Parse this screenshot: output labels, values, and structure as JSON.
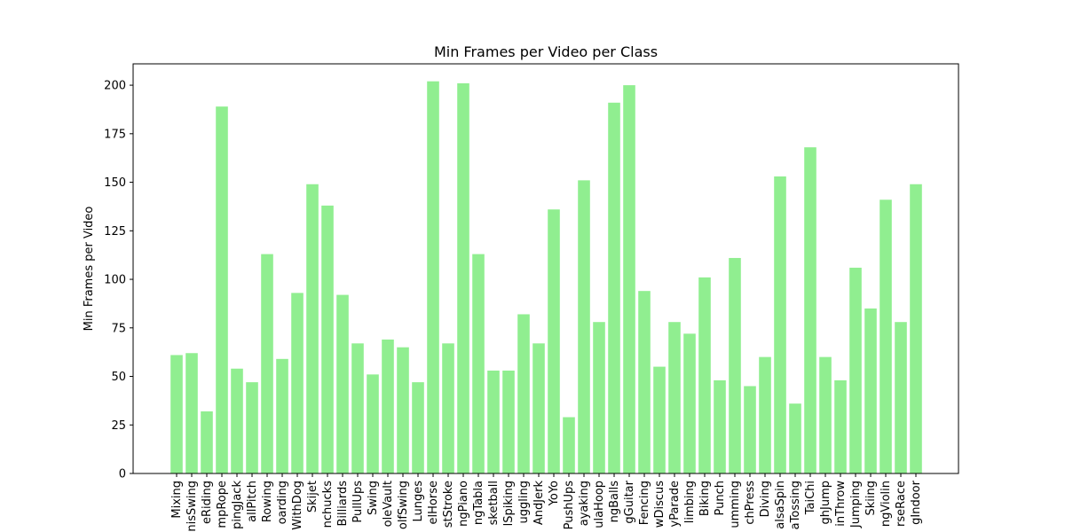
{
  "chart_data": {
    "type": "bar",
    "title": "Min Frames per Video per Class",
    "xlabel": "",
    "ylabel": "Min Frames per Video",
    "ylim": [
      0,
      211
    ],
    "yticks": [
      0,
      25,
      50,
      75,
      100,
      125,
      150,
      175,
      200
    ],
    "grid": false,
    "bar_color": "#90ee90",
    "categories": [
      "Mixing",
      "nisSwing",
      "eRiding",
      "mpRope",
      "pingJack",
      "allPitch",
      "Rowing",
      "oarding",
      "WithDog",
      "Skijet",
      "nchucks",
      "Billiards",
      "PullUps",
      "Swing",
      "oleVault",
      "olfSwing",
      "Lunges",
      "elHorse",
      "stStroke",
      "ngPiano",
      "ngTabla",
      "sketball",
      "lSpiking",
      "uggling",
      "AndJerk",
      "YoYo",
      "PushUps",
      "ayaking",
      "ulaHoop",
      "ngBalls",
      "gGuitar",
      "Fencing",
      "wDiscus",
      "yParade",
      "limbing",
      "Biking",
      "Punch",
      "umming",
      "chPress",
      "Diving",
      "alsaSpin",
      "aTossing",
      "TaiChi",
      "ghJump",
      "inThrow",
      "Jumping",
      "Skiing",
      "ngViolin",
      "rseRace",
      "gIndoor"
    ],
    "values": [
      61,
      62,
      32,
      189,
      54,
      47,
      113,
      59,
      93,
      149,
      138,
      92,
      67,
      51,
      69,
      65,
      47,
      202,
      67,
      201,
      113,
      53,
      53,
      82,
      67,
      136,
      29,
      151,
      78,
      191,
      200,
      94,
      55,
      78,
      72,
      101,
      48,
      111,
      45,
      60,
      153,
      36,
      168,
      60,
      48,
      106,
      85,
      141,
      78,
      149
    ]
  }
}
